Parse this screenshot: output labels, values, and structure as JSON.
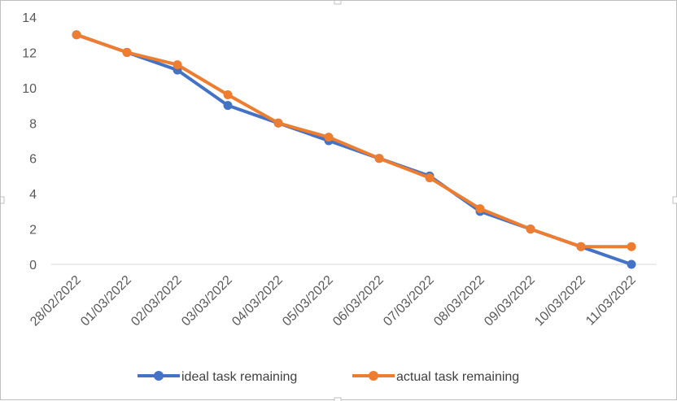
{
  "chart_data": {
    "type": "line",
    "title": "",
    "xlabel": "",
    "ylabel": "",
    "categories": [
      "28/02/2022",
      "01/03/2022",
      "02/03/2022",
      "03/03/2022",
      "04/03/2022",
      "05/03/2022",
      "06/03/2022",
      "07/03/2022",
      "08/03/2022",
      "09/03/2022",
      "10/03/2022",
      "11/03/2022"
    ],
    "ylim": [
      0,
      14
    ],
    "yticks": [
      0,
      2,
      4,
      6,
      8,
      10,
      12,
      14
    ],
    "grid": false,
    "legend_position": "bottom",
    "series": [
      {
        "name": "ideal task remaining",
        "color": "#4472c4",
        "values": [
          13,
          12,
          11,
          9,
          8,
          7,
          6,
          5,
          3,
          2,
          1,
          0
        ]
      },
      {
        "name": "actual task remaining",
        "color": "#ed7d31",
        "values": [
          13,
          12,
          11.3,
          9.6,
          8,
          7.2,
          6,
          4.9,
          3.15,
          2,
          1,
          1
        ]
      }
    ]
  }
}
